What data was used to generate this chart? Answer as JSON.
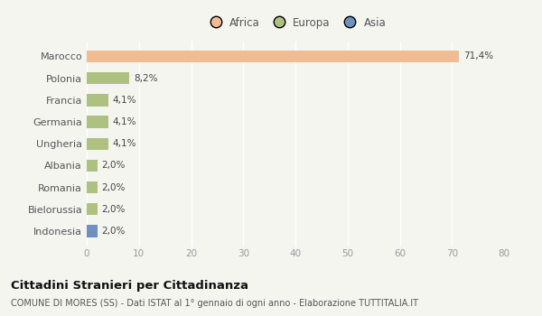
{
  "categories": [
    "Marocco",
    "Polonia",
    "Francia",
    "Germania",
    "Ungheria",
    "Albania",
    "Romania",
    "Bielorussia",
    "Indonesia"
  ],
  "values": [
    71.4,
    8.2,
    4.1,
    4.1,
    4.1,
    2.0,
    2.0,
    2.0,
    2.0
  ],
  "labels": [
    "71,4%",
    "8,2%",
    "4,1%",
    "4,1%",
    "4,1%",
    "2,0%",
    "2,0%",
    "2,0%",
    "2,0%"
  ],
  "colors": [
    "#f0bc94",
    "#afc180",
    "#afc180",
    "#afc180",
    "#afc180",
    "#afc180",
    "#afc180",
    "#afc180",
    "#7090c0"
  ],
  "legend_labels": [
    "Africa",
    "Europa",
    "Asia"
  ],
  "legend_colors": [
    "#f0bc94",
    "#afc180",
    "#7090c0"
  ],
  "xlim": [
    0,
    80
  ],
  "xticks": [
    0,
    10,
    20,
    30,
    40,
    50,
    60,
    70,
    80
  ],
  "title": "Cittadini Stranieri per Cittadinanza",
  "subtitle": "COMUNE DI MORES (SS) - Dati ISTAT al 1° gennaio di ogni anno - Elaborazione TUTTITALIA.IT",
  "background_color": "#f5f5f0",
  "bar_height": 0.55
}
